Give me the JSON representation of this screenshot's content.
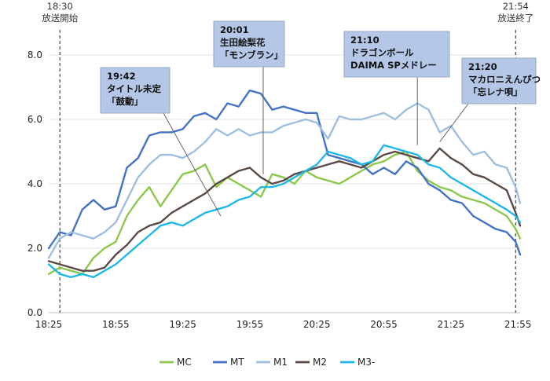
{
  "chart_data": {
    "type": "line",
    "x_start": "18:25",
    "x_end": "21:56",
    "x_tick_labels": [
      "18:25",
      "18:55",
      "19:25",
      "19:55",
      "20:25",
      "20:55",
      "21:25",
      "21:55"
    ],
    "y_tick_labels": [
      "0.0",
      "2.0",
      "4.0",
      "6.0",
      "8.0"
    ],
    "ylim": [
      0,
      8
    ],
    "grid": "horizontal",
    "legend_position": "bottom",
    "events": [
      {
        "time": "18:30",
        "lines": [
          "18:30",
          "放送開始"
        ]
      },
      {
        "time": "21:54",
        "lines": [
          "21:54",
          "放送終了"
        ]
      }
    ],
    "annotations": [
      {
        "time": "19:42",
        "lines": [
          "19:42",
          "タイトル未定",
          "「鼓動」"
        ]
      },
      {
        "time": "20:01",
        "lines": [
          "20:01",
          "生田絵梨花",
          "「モンブラン」"
        ]
      },
      {
        "time": "21:10",
        "lines": [
          "21:10",
          "ドラゴンボール",
          "DAIMA SPメドレー"
        ]
      },
      {
        "time": "21:20",
        "lines": [
          "21:20",
          "マカロニえんぴつ",
          "「忘レナ唄」"
        ]
      }
    ],
    "series": [
      {
        "name": "MC",
        "color": "#8cc84b",
        "points": [
          [
            "18:25",
            1.2
          ],
          [
            "18:30",
            1.4
          ],
          [
            "18:35",
            1.3
          ],
          [
            "18:40",
            1.2
          ],
          [
            "18:45",
            1.7
          ],
          [
            "18:50",
            2.0
          ],
          [
            "18:55",
            2.2
          ],
          [
            "19:00",
            3.0
          ],
          [
            "19:05",
            3.5
          ],
          [
            "19:10",
            3.9
          ],
          [
            "19:15",
            3.3
          ],
          [
            "19:20",
            3.8
          ],
          [
            "19:25",
            4.3
          ],
          [
            "19:30",
            4.4
          ],
          [
            "19:35",
            4.6
          ],
          [
            "19:40",
            3.9
          ],
          [
            "19:45",
            4.2
          ],
          [
            "19:50",
            4.0
          ],
          [
            "19:55",
            3.8
          ],
          [
            "20:00",
            3.6
          ],
          [
            "20:05",
            4.3
          ],
          [
            "20:10",
            4.2
          ],
          [
            "20:15",
            4.0
          ],
          [
            "20:20",
            4.4
          ],
          [
            "20:25",
            4.2
          ],
          [
            "20:30",
            4.1
          ],
          [
            "20:35",
            4.0
          ],
          [
            "20:40",
            4.2
          ],
          [
            "20:45",
            4.4
          ],
          [
            "20:50",
            4.6
          ],
          [
            "20:55",
            4.7
          ],
          [
            "21:00",
            4.9
          ],
          [
            "21:05",
            5.0
          ],
          [
            "21:10",
            4.4
          ],
          [
            "21:15",
            4.1
          ],
          [
            "21:20",
            3.9
          ],
          [
            "21:25",
            3.8
          ],
          [
            "21:30",
            3.6
          ],
          [
            "21:35",
            3.5
          ],
          [
            "21:40",
            3.4
          ],
          [
            "21:45",
            3.2
          ],
          [
            "21:50",
            3.0
          ],
          [
            "21:54",
            2.6
          ],
          [
            "21:56",
            2.3
          ]
        ]
      },
      {
        "name": "MT",
        "color": "#4472c4",
        "points": [
          [
            "18:25",
            2.0
          ],
          [
            "18:30",
            2.5
          ],
          [
            "18:35",
            2.4
          ],
          [
            "18:40",
            3.2
          ],
          [
            "18:45",
            3.5
          ],
          [
            "18:50",
            3.2
          ],
          [
            "18:55",
            3.3
          ],
          [
            "19:00",
            4.5
          ],
          [
            "19:05",
            4.8
          ],
          [
            "19:10",
            5.5
          ],
          [
            "19:15",
            5.6
          ],
          [
            "19:20",
            5.6
          ],
          [
            "19:25",
            5.7
          ],
          [
            "19:30",
            6.1
          ],
          [
            "19:35",
            6.2
          ],
          [
            "19:40",
            6.0
          ],
          [
            "19:45",
            6.5
          ],
          [
            "19:50",
            6.4
          ],
          [
            "19:55",
            6.9
          ],
          [
            "20:00",
            6.8
          ],
          [
            "20:05",
            6.3
          ],
          [
            "20:10",
            6.4
          ],
          [
            "20:15",
            6.3
          ],
          [
            "20:20",
            6.2
          ],
          [
            "20:25",
            6.2
          ],
          [
            "20:30",
            4.9
          ],
          [
            "20:35",
            4.8
          ],
          [
            "20:40",
            4.7
          ],
          [
            "20:45",
            4.6
          ],
          [
            "20:50",
            4.3
          ],
          [
            "20:55",
            4.5
          ],
          [
            "21:00",
            4.3
          ],
          [
            "21:05",
            4.7
          ],
          [
            "21:10",
            4.5
          ],
          [
            "21:15",
            4.0
          ],
          [
            "21:20",
            3.8
          ],
          [
            "21:25",
            3.5
          ],
          [
            "21:30",
            3.4
          ],
          [
            "21:35",
            3.0
          ],
          [
            "21:40",
            2.8
          ],
          [
            "21:45",
            2.6
          ],
          [
            "21:50",
            2.5
          ],
          [
            "21:54",
            2.2
          ],
          [
            "21:56",
            1.8
          ]
        ]
      },
      {
        "name": "M1",
        "color": "#9fbfdf",
        "points": [
          [
            "18:25",
            1.7
          ],
          [
            "18:30",
            2.3
          ],
          [
            "18:35",
            2.5
          ],
          [
            "18:40",
            2.4
          ],
          [
            "18:45",
            2.3
          ],
          [
            "18:50",
            2.5
          ],
          [
            "18:55",
            2.8
          ],
          [
            "19:00",
            3.5
          ],
          [
            "19:05",
            4.2
          ],
          [
            "19:10",
            4.6
          ],
          [
            "19:15",
            4.9
          ],
          [
            "19:20",
            4.9
          ],
          [
            "19:25",
            4.8
          ],
          [
            "19:30",
            5.0
          ],
          [
            "19:35",
            5.3
          ],
          [
            "19:40",
            5.7
          ],
          [
            "19:45",
            5.5
          ],
          [
            "19:50",
            5.7
          ],
          [
            "19:55",
            5.5
          ],
          [
            "20:00",
            5.6
          ],
          [
            "20:05",
            5.6
          ],
          [
            "20:10",
            5.8
          ],
          [
            "20:15",
            5.9
          ],
          [
            "20:20",
            6.0
          ],
          [
            "20:25",
            5.9
          ],
          [
            "20:30",
            5.4
          ],
          [
            "20:35",
            6.1
          ],
          [
            "20:40",
            6.0
          ],
          [
            "20:45",
            6.0
          ],
          [
            "20:50",
            6.1
          ],
          [
            "20:55",
            6.2
          ],
          [
            "21:00",
            6.0
          ],
          [
            "21:05",
            6.3
          ],
          [
            "21:10",
            6.5
          ],
          [
            "21:15",
            6.3
          ],
          [
            "21:20",
            5.6
          ],
          [
            "21:25",
            5.8
          ],
          [
            "21:30",
            5.3
          ],
          [
            "21:35",
            4.9
          ],
          [
            "21:40",
            5.0
          ],
          [
            "21:45",
            4.6
          ],
          [
            "21:50",
            4.5
          ],
          [
            "21:54",
            3.9
          ],
          [
            "21:56",
            3.4
          ]
        ]
      },
      {
        "name": "M2",
        "color": "#5b4a44",
        "points": [
          [
            "18:25",
            1.6
          ],
          [
            "18:30",
            1.5
          ],
          [
            "18:35",
            1.4
          ],
          [
            "18:40",
            1.3
          ],
          [
            "18:45",
            1.3
          ],
          [
            "18:50",
            1.4
          ],
          [
            "18:55",
            1.8
          ],
          [
            "19:00",
            2.1
          ],
          [
            "19:05",
            2.5
          ],
          [
            "19:10",
            2.7
          ],
          [
            "19:15",
            2.8
          ],
          [
            "19:20",
            3.1
          ],
          [
            "19:25",
            3.3
          ],
          [
            "19:30",
            3.5
          ],
          [
            "19:35",
            3.7
          ],
          [
            "19:40",
            4.0
          ],
          [
            "19:45",
            4.2
          ],
          [
            "19:50",
            4.4
          ],
          [
            "19:55",
            4.5
          ],
          [
            "20:00",
            4.2
          ],
          [
            "20:05",
            4.0
          ],
          [
            "20:10",
            4.1
          ],
          [
            "20:15",
            4.3
          ],
          [
            "20:20",
            4.4
          ],
          [
            "20:25",
            4.5
          ],
          [
            "20:30",
            4.6
          ],
          [
            "20:35",
            4.7
          ],
          [
            "20:40",
            4.6
          ],
          [
            "20:45",
            4.5
          ],
          [
            "20:50",
            4.7
          ],
          [
            "20:55",
            4.9
          ],
          [
            "21:00",
            5.0
          ],
          [
            "21:05",
            4.9
          ],
          [
            "21:10",
            4.8
          ],
          [
            "21:15",
            4.7
          ],
          [
            "21:20",
            5.1
          ],
          [
            "21:25",
            4.8
          ],
          [
            "21:30",
            4.6
          ],
          [
            "21:35",
            4.3
          ],
          [
            "21:40",
            4.2
          ],
          [
            "21:45",
            4.0
          ],
          [
            "21:50",
            3.8
          ],
          [
            "21:54",
            3.1
          ],
          [
            "21:56",
            2.7
          ]
        ]
      },
      {
        "name": "M3-",
        "color": "#1fb8e6",
        "points": [
          [
            "18:25",
            1.5
          ],
          [
            "18:30",
            1.2
          ],
          [
            "18:35",
            1.1
          ],
          [
            "18:40",
            1.2
          ],
          [
            "18:45",
            1.1
          ],
          [
            "18:50",
            1.3
          ],
          [
            "18:55",
            1.5
          ],
          [
            "19:00",
            1.8
          ],
          [
            "19:05",
            2.1
          ],
          [
            "19:10",
            2.4
          ],
          [
            "19:15",
            2.7
          ],
          [
            "19:20",
            2.8
          ],
          [
            "19:25",
            2.7
          ],
          [
            "19:30",
            2.9
          ],
          [
            "19:35",
            3.1
          ],
          [
            "19:40",
            3.2
          ],
          [
            "19:45",
            3.3
          ],
          [
            "19:50",
            3.5
          ],
          [
            "19:55",
            3.6
          ],
          [
            "20:00",
            3.9
          ],
          [
            "20:05",
            3.9
          ],
          [
            "20:10",
            4.0
          ],
          [
            "20:15",
            4.2
          ],
          [
            "20:20",
            4.4
          ],
          [
            "20:25",
            4.6
          ],
          [
            "20:30",
            5.0
          ],
          [
            "20:35",
            4.9
          ],
          [
            "20:40",
            4.8
          ],
          [
            "20:45",
            4.6
          ],
          [
            "20:50",
            4.7
          ],
          [
            "20:55",
            5.2
          ],
          [
            "21:00",
            5.1
          ],
          [
            "21:05",
            5.0
          ],
          [
            "21:10",
            4.9
          ],
          [
            "21:15",
            4.6
          ],
          [
            "21:20",
            4.5
          ],
          [
            "21:25",
            4.2
          ],
          [
            "21:30",
            4.0
          ],
          [
            "21:35",
            3.8
          ],
          [
            "21:40",
            3.6
          ],
          [
            "21:45",
            3.4
          ],
          [
            "21:50",
            3.2
          ],
          [
            "21:54",
            3.0
          ],
          [
            "21:56",
            2.8
          ]
        ]
      }
    ]
  }
}
